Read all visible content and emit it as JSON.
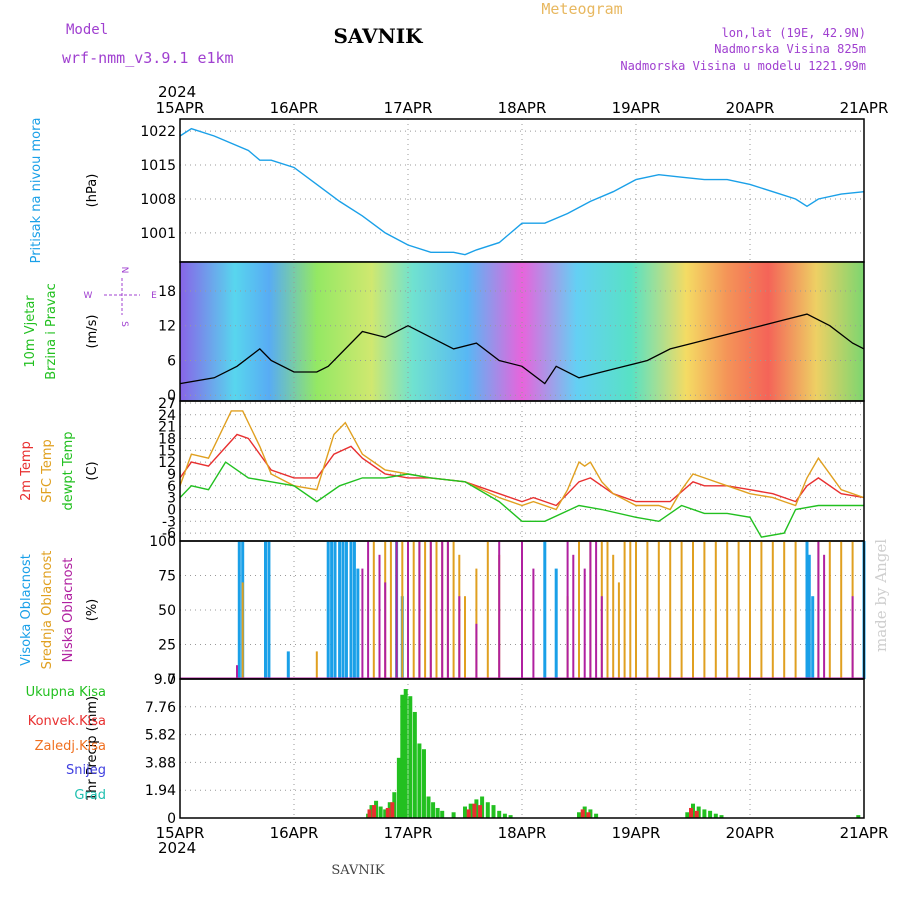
{
  "header": {
    "model_label": "Model",
    "model_name": "wrf-nmm_v3.9.1  e1km",
    "title": "SAVNIK",
    "subtitle": "Meteogram",
    "location_lines": [
      "lon,lat (19E, 42.9N)",
      "Nadmorska Visina 825m",
      "Nadmorska Visina u modelu 1221.99m"
    ]
  },
  "footer": {
    "title": "SAVNIK",
    "credit": "made by Angel"
  },
  "colors": {
    "pressure": "#1aa0e8",
    "temp2m": "#e83030",
    "sfc": "#e0a020",
    "dewpt": "#22c020",
    "high_cloud": "#1aa0e8",
    "mid_cloud": "#e0a020",
    "low_cloud": "#b020a0",
    "total_precip": "#22c020",
    "conv_precip": "#e83030",
    "freezing": "#f07020",
    "snow": "#4040e0",
    "hail": "#20c0b0",
    "purple_text": "#a040d0",
    "credit": "#cccccc"
  },
  "chart_data": {
    "type": "line",
    "year": "2024",
    "x_tick_labels": [
      "15APR",
      "16APR",
      "17APR",
      "18APR",
      "19APR",
      "20APR",
      "21APR"
    ],
    "panels": [
      {
        "id": "pressure",
        "ylabel": "(hPa)",
        "side_labels": [
          "Pritisak na nivou mora"
        ],
        "yticks": [
          1001,
          1008,
          1015,
          1022
        ],
        "ylim": [
          995,
          1024.5
        ],
        "series": [
          {
            "name": "Pritisak na nivou mora",
            "x": [
              0,
              0.1,
              0.3,
              0.6,
              0.7,
              0.8,
              1.0,
              1.2,
              1.4,
              1.6,
              1.8,
              2.0,
              2.2,
              2.4,
              2.5,
              2.6,
              2.8,
              3.0,
              3.2,
              3.4,
              3.6,
              3.8,
              4.0,
              4.2,
              4.4,
              4.6,
              4.8,
              5.0,
              5.2,
              5.4,
              5.5,
              5.6,
              5.8,
              6.0
            ],
            "values": [
              1021,
              1022.5,
              1021,
              1018,
              1016,
              1016,
              1014.5,
              1011,
              1007.5,
              1004.5,
              1001,
              998.5,
              997,
              997,
              996.5,
              997.5,
              999,
              1003,
              1003,
              1005,
              1007.5,
              1009.5,
              1012,
              1013,
              1012.5,
              1012,
              1012,
              1011,
              1009.5,
              1008,
              1006.5,
              1008,
              1009,
              1009.5
            ]
          }
        ]
      },
      {
        "id": "wind",
        "ylabel": "(m/s)",
        "side_labels": [
          "10m Vjetar",
          "Brzina i Pravac"
        ],
        "compass": [
          "N",
          "W",
          "E",
          "S"
        ],
        "yticks": [
          0,
          6,
          12,
          18
        ],
        "ylim": [
          -1,
          23
        ],
        "series": [
          {
            "name": "Brzina",
            "x": [
              0,
              0.3,
              0.5,
              0.7,
              0.8,
              1.0,
              1.2,
              1.3,
              1.6,
              1.8,
              2.0,
              2.2,
              2.4,
              2.6,
              2.8,
              3.0,
              3.2,
              3.3,
              3.5,
              3.7,
              3.9,
              4.1,
              4.3,
              4.5,
              4.7,
              4.9,
              5.1,
              5.3,
              5.5,
              5.7,
              5.9,
              6.0
            ],
            "values": [
              2,
              3,
              5,
              8,
              6,
              4,
              4,
              5,
              11,
              10,
              12,
              10,
              8,
              9,
              6,
              5,
              2,
              5,
              3,
              4,
              5,
              6,
              8,
              9,
              10,
              11,
              12,
              13,
              14,
              12,
              9,
              8
            ]
          }
        ]
      },
      {
        "id": "temperature",
        "ylabel": "(C)",
        "side_labels": [
          "2m Temp",
          "SFC Temp",
          "dewpt Temp"
        ],
        "yticks": [
          -6,
          -3,
          0,
          3,
          6,
          9,
          12,
          15,
          18,
          21,
          24,
          27
        ],
        "ylim": [
          -8,
          27.5
        ],
        "series": [
          {
            "name": "2m Temp",
            "x": [
              0,
              0.1,
              0.25,
              0.5,
              0.6,
              0.8,
              1.0,
              1.2,
              1.35,
              1.5,
              1.6,
              1.8,
              2.0,
              2.2,
              2.5,
              2.8,
              3.0,
              3.1,
              3.3,
              3.5,
              3.6,
              3.7,
              3.8,
              4.0,
              4.2,
              4.3,
              4.5,
              4.6,
              4.8,
              5.0,
              5.2,
              5.4,
              5.5,
              5.6,
              5.8,
              6.0
            ],
            "values": [
              8,
              12,
              11,
              19,
              18,
              10,
              8,
              8,
              14,
              16,
              13,
              9,
              8,
              8,
              7,
              4,
              2,
              3,
              1,
              7,
              8,
              6,
              4,
              2,
              2,
              2,
              7,
              6,
              6,
              5,
              4,
              2,
              6,
              8,
              4,
              3
            ]
          },
          {
            "name": "SFC Temp",
            "x": [
              0,
              0.1,
              0.25,
              0.45,
              0.55,
              0.7,
              0.8,
              1.0,
              1.2,
              1.35,
              1.45,
              1.6,
              1.8,
              2.0,
              2.2,
              2.5,
              2.8,
              3.0,
              3.1,
              3.3,
              3.4,
              3.5,
              3.55,
              3.6,
              3.7,
              3.8,
              4.0,
              4.2,
              4.3,
              4.4,
              4.5,
              4.6,
              4.8,
              5.0,
              5.2,
              5.3,
              5.4,
              5.5,
              5.6,
              5.8,
              6.0
            ],
            "values": [
              6,
              14,
              13,
              25,
              25,
              16,
              9,
              6,
              5,
              19,
              22,
              14,
              10,
              9,
              8,
              7,
              3,
              1,
              2,
              0,
              5,
              12,
              11,
              12,
              7,
              4,
              1,
              1,
              0,
              5,
              9,
              8,
              6,
              4,
              3,
              2,
              1,
              8,
              13,
              5,
              3
            ]
          },
          {
            "name": "dewpt Temp",
            "x": [
              0,
              0.1,
              0.25,
              0.4,
              0.6,
              0.8,
              1.0,
              1.2,
              1.4,
              1.6,
              1.8,
              2.0,
              2.2,
              2.5,
              2.8,
              3.0,
              3.2,
              3.5,
              3.7,
              4.0,
              4.2,
              4.4,
              4.6,
              4.8,
              5.0,
              5.1,
              5.3,
              5.4,
              5.6,
              5.8,
              6.0
            ],
            "values": [
              3,
              6,
              5,
              12,
              8,
              7,
              6,
              2,
              6,
              8,
              8,
              9,
              8,
              7,
              2,
              -3,
              -3,
              1,
              0,
              -2,
              -3,
              1,
              -1,
              -1,
              -2,
              -7,
              -6,
              0,
              1,
              1,
              1
            ]
          }
        ]
      },
      {
        "id": "clouds",
        "ylabel": "(%)",
        "side_labels": [
          "Visoka Oblacnost",
          "Srednja Oblacnost",
          "Niska Oblacnost"
        ],
        "yticks": [
          0,
          25,
          50,
          75,
          100
        ],
        "ylim": [
          0,
          100
        ],
        "series": [
          {
            "name": "Visoka Oblacnost",
            "x": [
              0.52,
              0.55,
              0.75,
              0.78,
              0.95,
              1.3,
              1.33,
              1.36,
              1.4,
              1.43,
              1.46,
              1.5,
              1.53,
              1.56,
              1.9,
              1.95,
              3.2,
              3.3,
              5.5,
              5.52,
              5.55,
              6.0
            ],
            "values": [
              100,
              100,
              100,
              100,
              20,
              100,
              100,
              100,
              100,
              100,
              100,
              100,
              100,
              80,
              100,
              60,
              100,
              80,
              100,
              90,
              60,
              100
            ]
          },
          {
            "name": "Srednja Oblacnost",
            "x": [
              0.55,
              1.2,
              1.7,
              1.8,
              1.85,
              1.9,
              1.95,
              2.0,
              2.05,
              2.1,
              2.15,
              2.2,
              2.25,
              2.3,
              2.35,
              2.4,
              2.45,
              2.5,
              2.6,
              2.7,
              2.8,
              3.0,
              3.4,
              3.5,
              3.6,
              3.7,
              3.75,
              3.8,
              3.85,
              3.9,
              3.95,
              4.0,
              4.1,
              4.2,
              4.3,
              4.4,
              4.5,
              4.6,
              4.7,
              4.8,
              4.9,
              5.0,
              5.1,
              5.2,
              5.3,
              5.4,
              5.6,
              5.7,
              5.8,
              5.9
            ],
            "values": [
              70,
              20,
              100,
              100,
              100,
              100,
              100,
              100,
              100,
              100,
              100,
              100,
              100,
              100,
              100,
              100,
              90,
              60,
              80,
              100,
              90,
              70,
              60,
              100,
              100,
              100,
              100,
              90,
              70,
              100,
              100,
              100,
              100,
              100,
              100,
              100,
              100,
              100,
              100,
              100,
              100,
              100,
              100,
              100,
              100,
              100,
              100,
              100,
              100,
              100
            ]
          },
          {
            "name": "Niska Oblacnost",
            "x": [
              0.5,
              1.6,
              1.65,
              1.75,
              1.8,
              1.9,
              2.0,
              2.1,
              2.2,
              2.3,
              2.35,
              2.45,
              2.6,
              2.8,
              3.0,
              3.1,
              3.4,
              3.45,
              3.55,
              3.6,
              3.65,
              3.7,
              5.6,
              5.65,
              5.9
            ],
            "values": [
              10,
              80,
              100,
              90,
              70,
              100,
              100,
              100,
              100,
              100,
              100,
              60,
              40,
              100,
              100,
              80,
              100,
              90,
              80,
              100,
              100,
              60,
              100,
              90,
              60
            ]
          }
        ]
      },
      {
        "id": "precip",
        "ylabel": "1hr Precip (mm)",
        "side_labels": [
          "Ukupna Kisa",
          "Konvek.Kisa",
          "Zaledj.Kisa",
          "Snijeg",
          "Grad"
        ],
        "yticks": [
          0,
          1.94,
          3.88,
          5.82,
          7.76,
          9.7
        ],
        "ylim": [
          0,
          9.7
        ],
        "series": [
          {
            "name": "Ukupna Kisa",
            "x": [
              1.65,
              1.68,
              1.72,
              1.76,
              1.8,
              1.84,
              1.88,
              1.92,
              1.95,
              1.98,
              2.02,
              2.06,
              2.1,
              2.14,
              2.18,
              2.22,
              2.26,
              2.3,
              2.4,
              2.5,
              2.55,
              2.6,
              2.65,
              2.7,
              2.75,
              2.8,
              2.85,
              2.9,
              3.5,
              3.55,
              3.6,
              3.65,
              4.45,
              4.5,
              4.55,
              4.6,
              4.65,
              4.7,
              4.75,
              5.95
            ],
            "values": [
              0.3,
              0.9,
              1.2,
              0.8,
              0.6,
              1.1,
              1.8,
              4.2,
              8.6,
              9.0,
              8.5,
              7.4,
              5.2,
              4.8,
              1.5,
              1.1,
              0.7,
              0.5,
              0.4,
              0.8,
              1.0,
              1.3,
              1.5,
              1.1,
              0.9,
              0.5,
              0.3,
              0.2,
              0.4,
              0.8,
              0.6,
              0.3,
              0.4,
              1.0,
              0.8,
              0.6,
              0.5,
              0.3,
              0.2,
              0.2
            ]
          },
          {
            "name": "Konvek.Kisa",
            "x": [
              1.68,
              1.72,
              1.84,
              1.88,
              2.55,
              2.6,
              2.65,
              3.55,
              3.6,
              4.5,
              4.55
            ],
            "values": [
              0.6,
              0.9,
              0.7,
              1.1,
              0.6,
              1.0,
              0.9,
              0.6,
              0.4,
              0.7,
              0.5
            ]
          }
        ]
      }
    ]
  }
}
